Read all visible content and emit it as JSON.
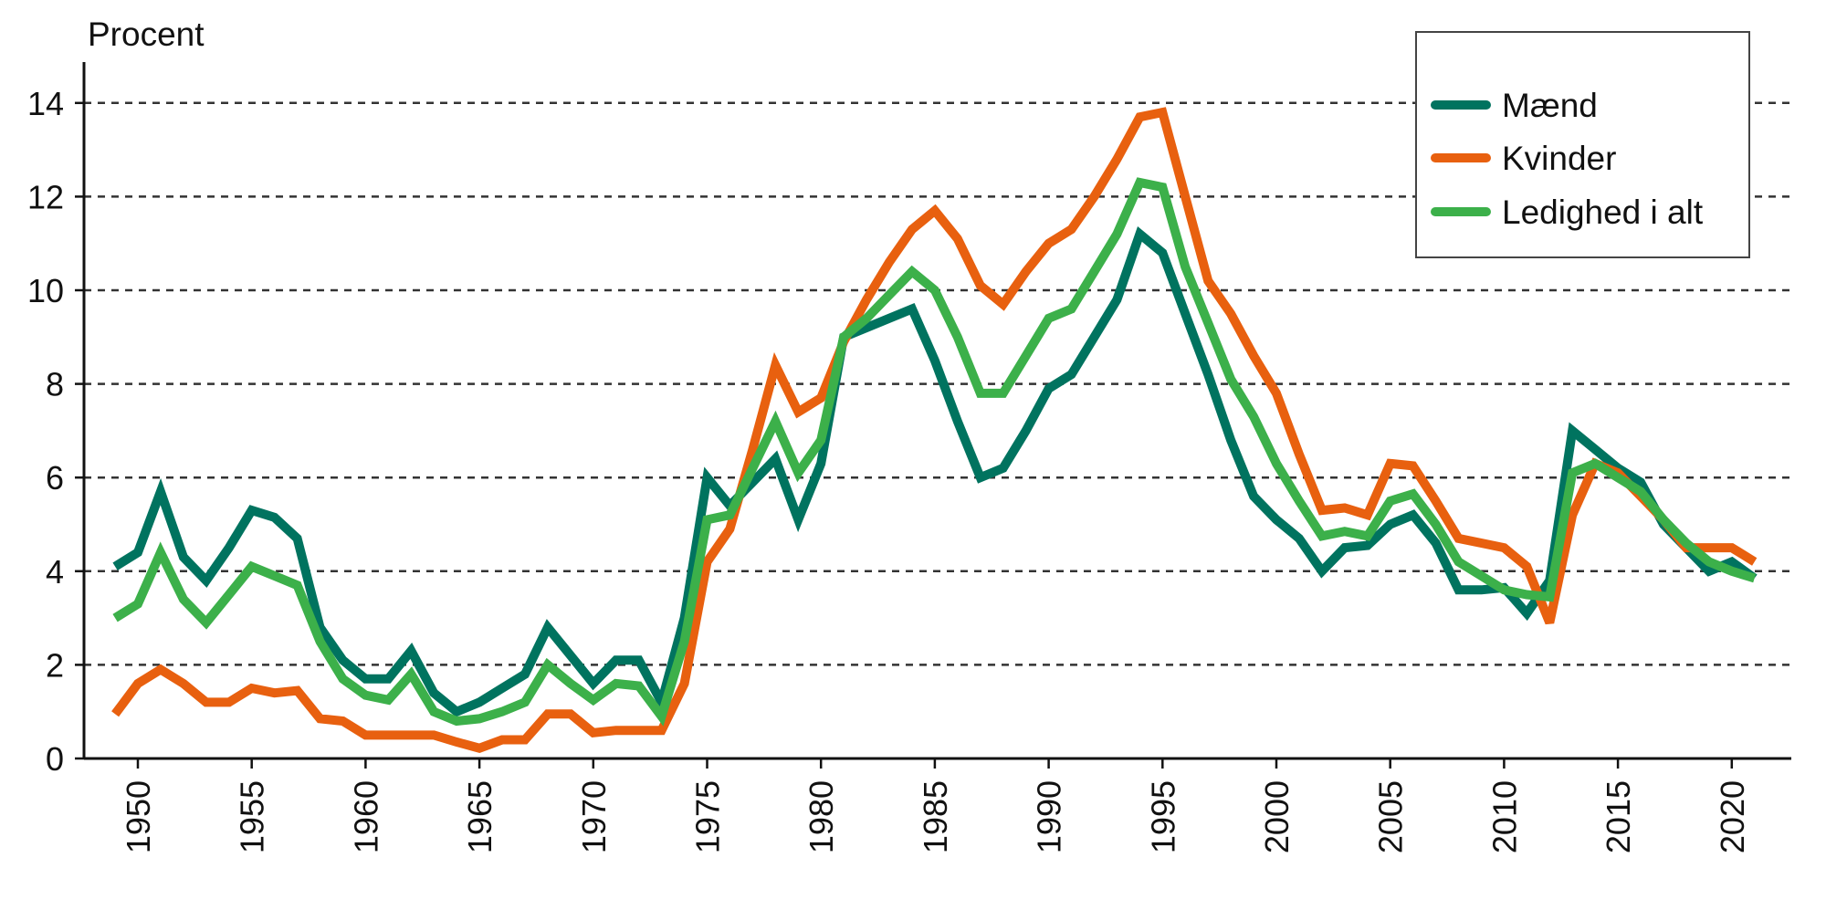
{
  "chart_data": {
    "type": "line",
    "title": "",
    "ylabel": "Procent",
    "xlabel": "",
    "ylim": [
      0,
      14
    ],
    "yticks": [
      0,
      2,
      4,
      6,
      8,
      10,
      12,
      14
    ],
    "xlim": [
      1949,
      2021
    ],
    "xticks": [
      1950,
      1955,
      1960,
      1965,
      1970,
      1975,
      1980,
      1985,
      1990,
      1995,
      2000,
      2005,
      2010,
      2015,
      2020
    ],
    "grid": "horizontal dashed",
    "legend_position": "top-right",
    "x_start": 1949,
    "series": [
      {
        "name": "Mænd",
        "color": "#00735f",
        "values": [
          4.1,
          4.4,
          5.7,
          4.3,
          3.8,
          4.5,
          5.3,
          5.15,
          4.7,
          2.8,
          2.1,
          1.7,
          1.7,
          2.3,
          1.4,
          1.0,
          1.2,
          1.5,
          1.8,
          2.8,
          2.2,
          1.6,
          2.1,
          2.1,
          1.2,
          3.0,
          6.0,
          5.4,
          5.9,
          6.4,
          5.1,
          6.3,
          9.0,
          9.2,
          9.4,
          9.6,
          8.5,
          7.2,
          6.0,
          6.2,
          7.0,
          7.9,
          8.2,
          9.0,
          9.8,
          11.2,
          10.8,
          9.5,
          8.2,
          6.8,
          5.6,
          5.1,
          4.7,
          4.0,
          4.5,
          4.55,
          5.0,
          5.2,
          4.6,
          3.6,
          3.6,
          3.65,
          3.1,
          3.8,
          7.0,
          6.6,
          6.2,
          5.9,
          5.0,
          4.5,
          4.0,
          4.2,
          3.85
        ]
      },
      {
        "name": "Kvinder",
        "color": "#e8600f",
        "values": [
          0.95,
          1.6,
          1.9,
          1.6,
          1.2,
          1.2,
          1.5,
          1.4,
          1.45,
          0.85,
          0.8,
          0.5,
          0.5,
          0.5,
          0.5,
          0.35,
          0.22,
          0.4,
          0.4,
          0.95,
          0.95,
          0.55,
          0.6,
          0.6,
          0.6,
          1.6,
          4.2,
          4.9,
          6.6,
          8.4,
          7.4,
          7.7,
          8.9,
          9.8,
          10.6,
          11.3,
          11.7,
          11.1,
          10.1,
          9.7,
          10.4,
          11.0,
          11.3,
          12.0,
          12.8,
          13.7,
          13.8,
          12.0,
          10.2,
          9.5,
          8.6,
          7.8,
          6.5,
          5.3,
          5.35,
          5.2,
          6.3,
          6.25,
          5.5,
          4.7,
          4.6,
          4.5,
          4.1,
          2.9,
          5.2,
          6.3,
          6.1,
          5.6,
          5.1,
          4.5,
          4.5,
          4.5,
          4.2
        ]
      },
      {
        "name": "Ledighed i alt",
        "color": "#3cb04a",
        "values": [
          3.0,
          3.3,
          4.4,
          3.4,
          2.9,
          3.5,
          4.1,
          3.9,
          3.7,
          2.5,
          1.7,
          1.35,
          1.25,
          1.8,
          1.0,
          0.8,
          0.85,
          1.0,
          1.2,
          2.0,
          1.6,
          1.25,
          1.6,
          1.55,
          0.9,
          2.5,
          5.1,
          5.2,
          6.2,
          7.2,
          6.1,
          6.8,
          9.0,
          9.4,
          9.9,
          10.4,
          10.0,
          9.0,
          7.8,
          7.8,
          8.6,
          9.4,
          9.6,
          10.4,
          11.2,
          12.3,
          12.2,
          10.5,
          9.3,
          8.1,
          7.3,
          6.3,
          5.5,
          4.75,
          4.85,
          4.75,
          5.5,
          5.65,
          5.0,
          4.2,
          3.9,
          3.6,
          3.5,
          3.45,
          6.1,
          6.3,
          6.0,
          5.7,
          5.1,
          4.6,
          4.2,
          4.0,
          3.85
        ]
      }
    ]
  }
}
